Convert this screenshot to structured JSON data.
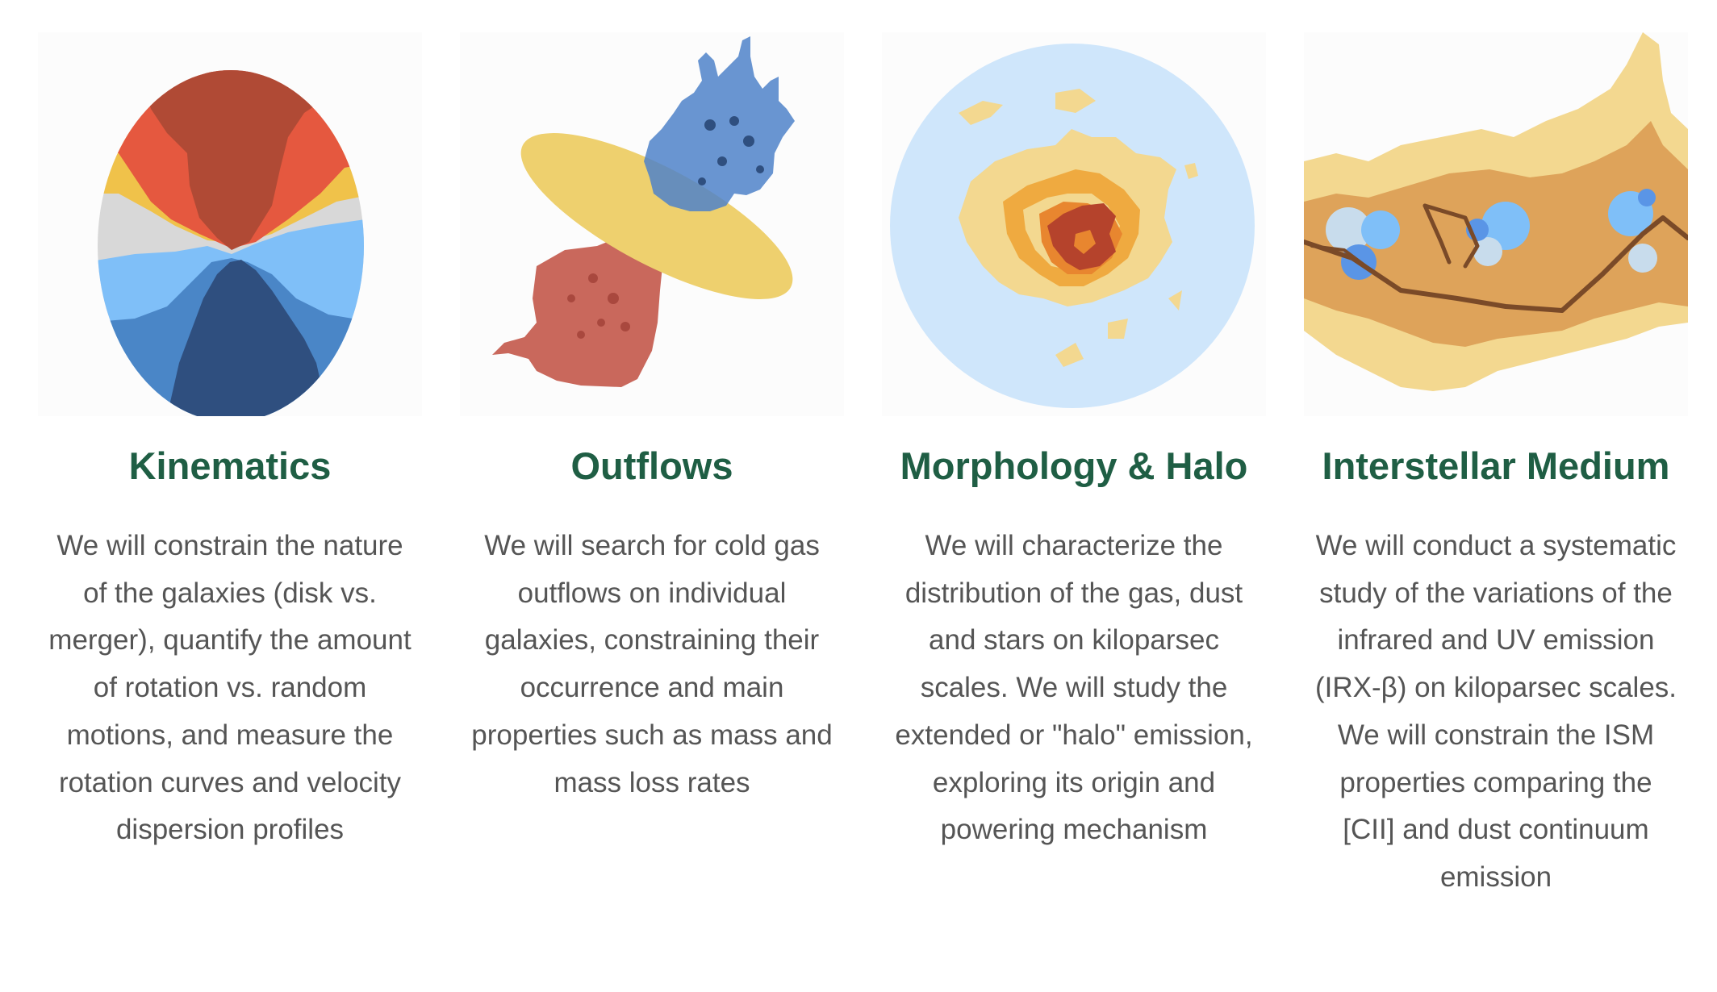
{
  "sections": [
    {
      "title": "Kinematics",
      "description": "We will constrain the nature of the galaxies (disk vs. merger),  quantify the amount of rotation vs. random motions, and measure the rotation curves and velocity dispersion profiles",
      "illustration": "velocity-field-ellipse-icon"
    },
    {
      "title": "Outflows",
      "description": "We will search for cold gas outflows on individual galaxies, constraining their occurrence and main properties such as mass and mass loss rates",
      "illustration": "bipolar-outflow-disk-icon"
    },
    {
      "title": "Morphology & Halo",
      "description": "We will characterize the distribution of the gas, dust and stars on kiloparsec scales. We will study the extended or \"halo\" emission, exploring its origin and powering mechanism",
      "illustration": "galaxy-halo-circle-icon"
    },
    {
      "title": "Interstellar Medium",
      "description": "We will conduct a systematic study of the variations of the infrared and UV emission (IRX-β) on kiloparsec scales. We will constrain the ISM properties comparing the [CII] and dust continuum emission",
      "illustration": "interstellar-medium-filament-icon"
    }
  ],
  "colors": {
    "heading": "#1f5e44",
    "body_text": "#555555",
    "background": "#ffffff"
  }
}
